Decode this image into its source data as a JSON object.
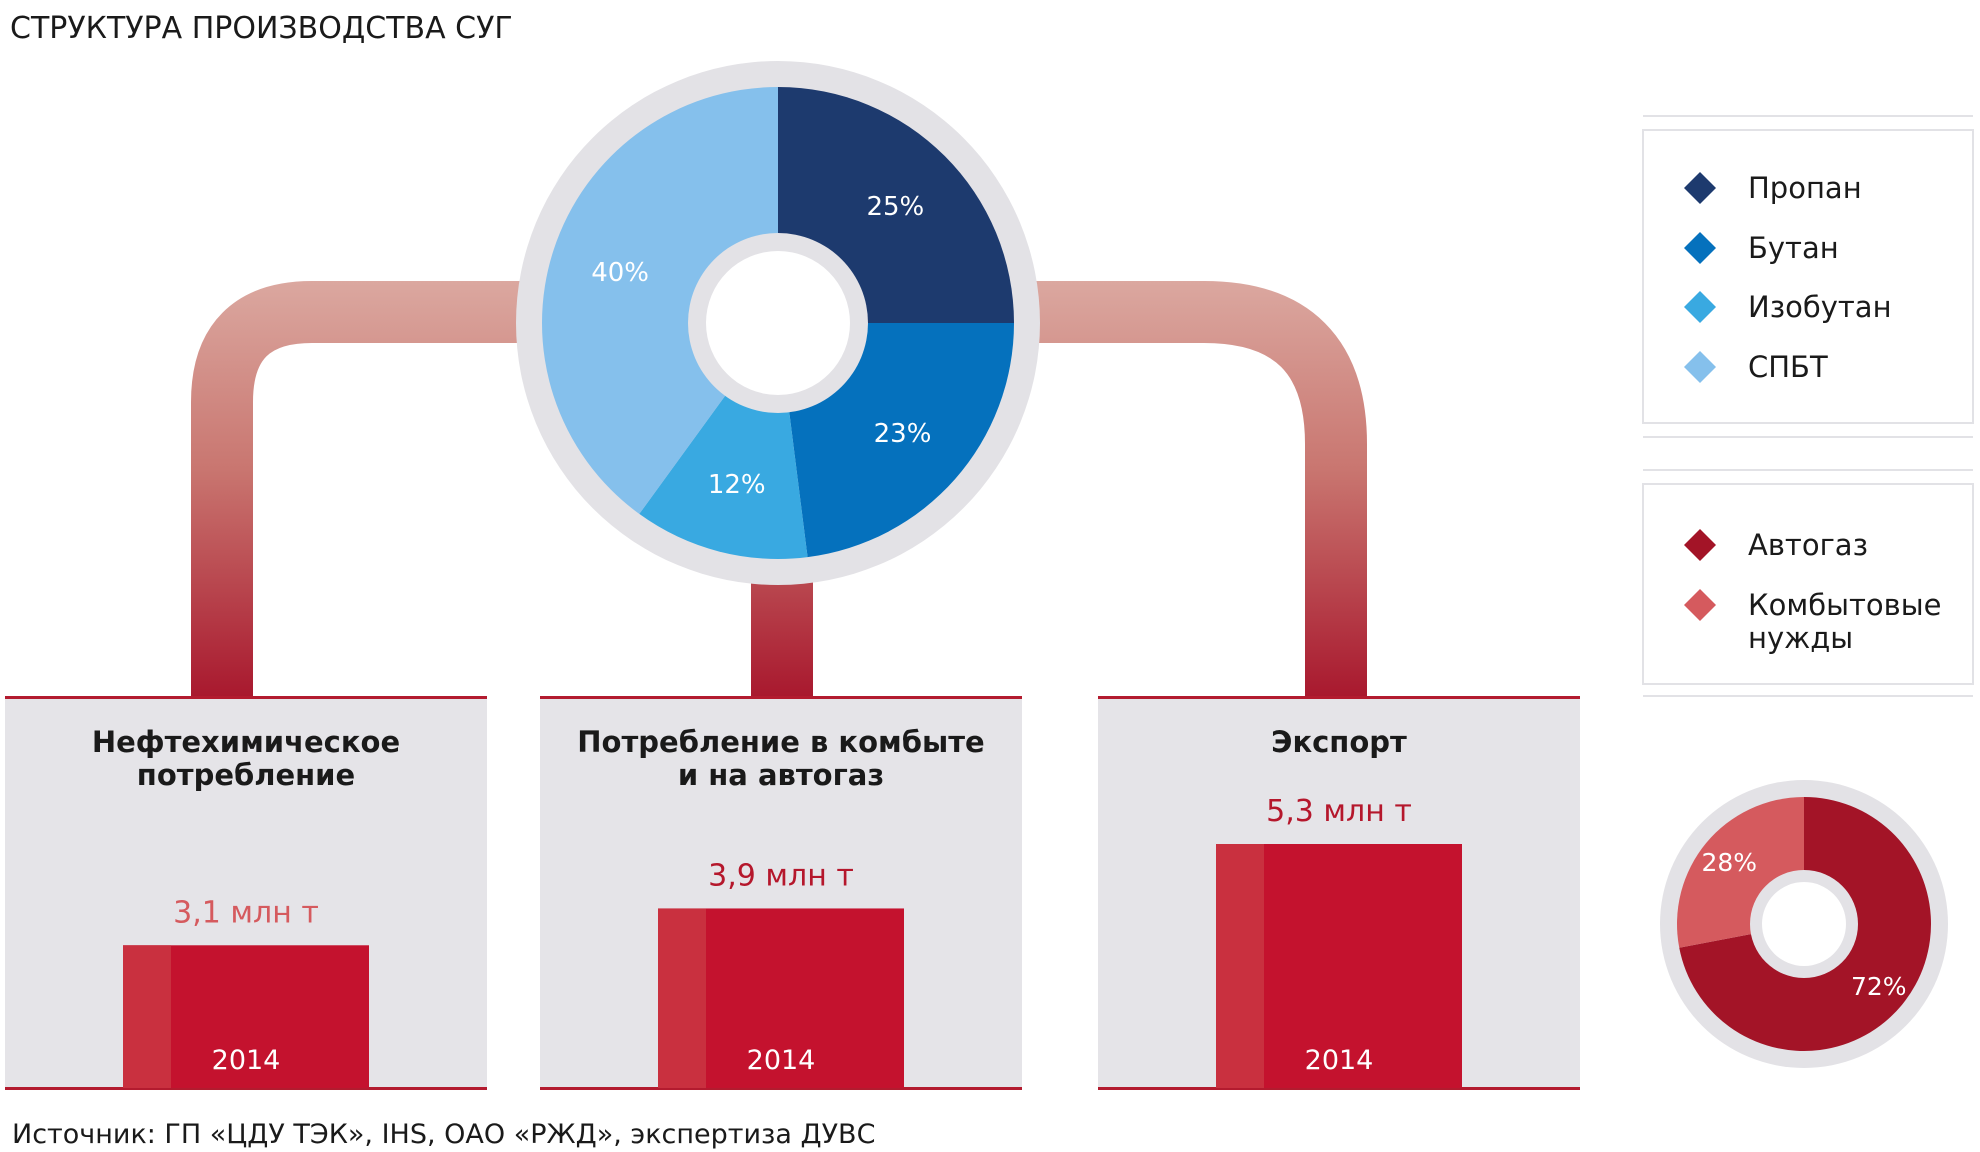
{
  "title": "СТРУКТУРА ПРОИЗВОДСТВА СУГ",
  "source": "Источник: ГП «ЦДУ ТЭК», IHS, ОАО «РЖД», экспертиза ДУВС",
  "colors": {
    "propane": "#1d3a6e",
    "butane": "#0571bd",
    "isobutane": "#39a9e1",
    "spbt": "#85c0ec",
    "autogas": "#a31427",
    "household": "#d55a5e",
    "bar_main": "#c4122e",
    "bar_side": "#c9303f",
    "panel_bg": "#e5e4e8",
    "panel_border": "#b31b2f",
    "ring": "#e3e2e6",
    "value_dark": "#b5172c",
    "value_light": "#d55a5e"
  },
  "legend_top": [
    {
      "label": "Пропан",
      "color": "#1d3a6e"
    },
    {
      "label": "Бутан",
      "color": "#0571bd"
    },
    {
      "label": "Изобутан",
      "color": "#39a9e1"
    },
    {
      "label": "СПБТ",
      "color": "#85c0ec"
    }
  ],
  "legend_bottom": [
    {
      "label": "Автогаз",
      "color": "#a31427"
    },
    {
      "label": "Комбытовые нужды",
      "color": "#d55a5e"
    }
  ],
  "chart_data": [
    {
      "type": "pie",
      "categories": [
        "Пропан",
        "Бутан",
        "Изобутан",
        "СПБТ"
      ],
      "values": [
        25,
        23,
        12,
        40
      ],
      "labels": [
        "25%",
        "23%",
        "12%",
        "40%"
      ],
      "colors": [
        "#1d3a6e",
        "#0571bd",
        "#39a9e1",
        "#85c0ec"
      ]
    },
    {
      "type": "bar",
      "groups": [
        {
          "title_lines": [
            "Нефтехимическое",
            "потребление"
          ],
          "value": 3.1,
          "value_label": "3,1 млн т",
          "year": "2014"
        },
        {
          "title_lines": [
            "Потребление в комбыте",
            "и на автогаз"
          ],
          "value": 3.9,
          "value_label": "3,9 млн т",
          "year": "2014"
        },
        {
          "title_lines": [
            "Экспорт"
          ],
          "value": 5.3,
          "value_label": "5,3 млн т",
          "year": "2014"
        }
      ]
    },
    {
      "type": "pie",
      "categories": [
        "Автогаз",
        "Комбытовые нужды"
      ],
      "values": [
        72,
        28
      ],
      "labels": [
        "72%",
        "28%"
      ],
      "colors": [
        "#a31427",
        "#d55a5e"
      ]
    }
  ]
}
